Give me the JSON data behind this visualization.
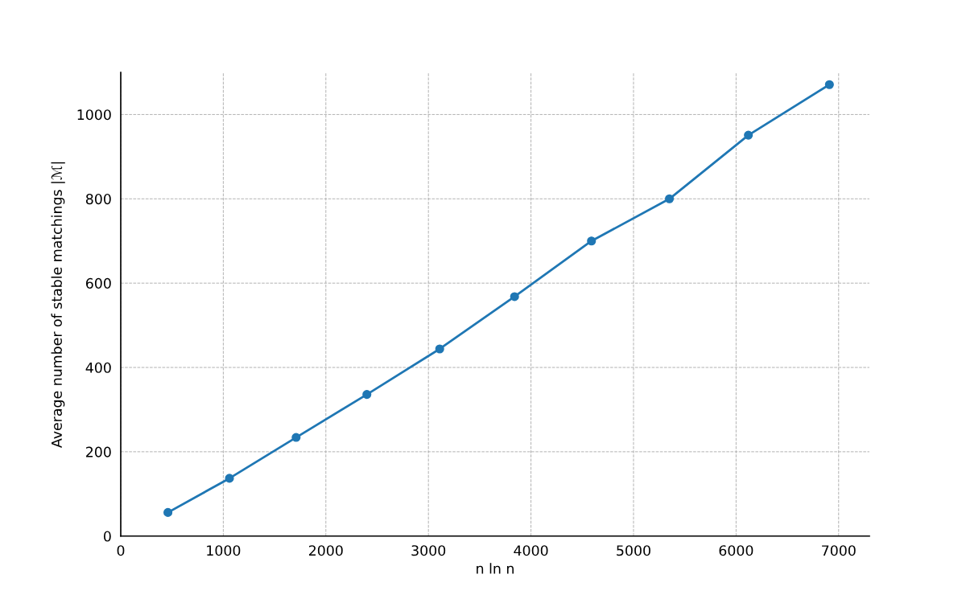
{
  "chart_data": {
    "type": "line",
    "xlabel": "n ln n",
    "ylabel": "Average number of stable matchings |ℳ|",
    "x": [
      460,
      1060,
      1710,
      2400,
      3110,
      3840,
      4590,
      5350,
      6120,
      6910
    ],
    "series": [
      {
        "color": "#1f77b4",
        "values": [
          56,
          137,
          234,
          336,
          444,
          568,
          700,
          800,
          951,
          1071
        ]
      }
    ],
    "xlim": [
      0,
      7300
    ],
    "ylim": [
      0,
      1100
    ],
    "xticks": [
      0,
      1000,
      2000,
      3000,
      4000,
      5000,
      6000,
      7000
    ],
    "yticks": [
      0,
      200,
      400,
      600,
      800,
      1000
    ],
    "grid": true,
    "marker": "circle",
    "line_style": "solid"
  }
}
